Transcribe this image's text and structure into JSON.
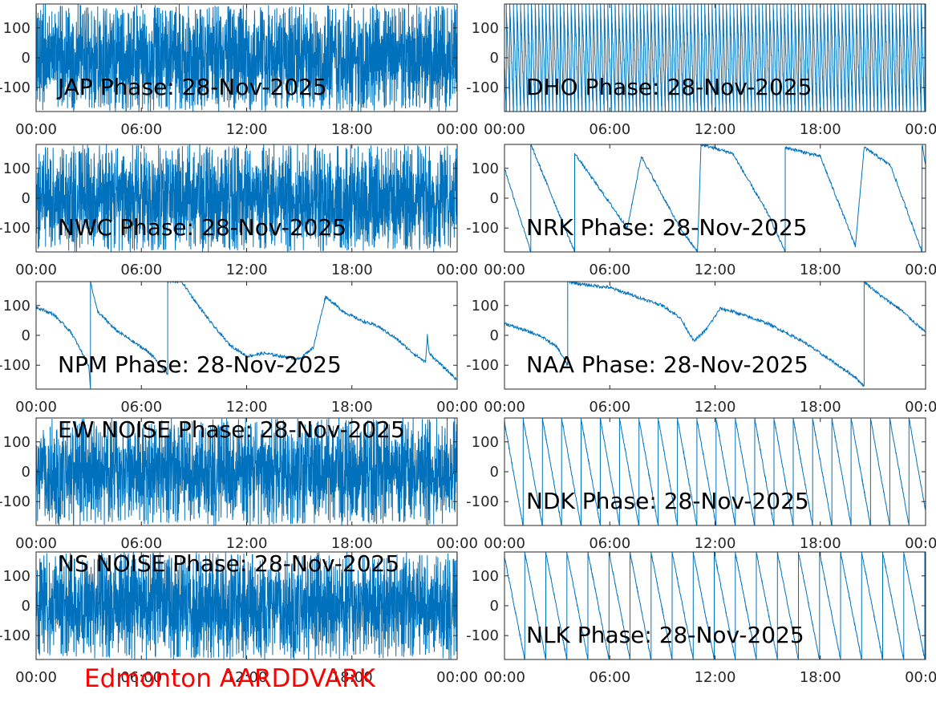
{
  "footer": {
    "label": "Edmonton AARDDVARK",
    "color": "#ff0000"
  },
  "style": {
    "line_color": "#0072bd",
    "axes_color": "#262626"
  },
  "chart_data": [
    {
      "type": "line",
      "title": "JAP Phase: 28-Nov-2025",
      "xlabel": "",
      "ylabel": "",
      "x_ticks": [
        "00:00",
        "06:00",
        "12:00",
        "18:00",
        "00:00"
      ],
      "x_range_hours": [
        0,
        24
      ],
      "yticks": [
        100,
        0,
        -100
      ],
      "ytick_labels": [
        "100",
        "0",
        "-100"
      ],
      "ylim": [
        -180,
        180
      ],
      "grid": false,
      "series": [
        {
          "pattern": "noise",
          "values": []
        }
      ]
    },
    {
      "type": "line",
      "title": "DHO Phase: 28-Nov-2025",
      "xlabel": "",
      "ylabel": "",
      "x_ticks": [
        "00:00",
        "06:00",
        "12:00",
        "18:00",
        "00:00"
      ],
      "x_range_hours": [
        0,
        24
      ],
      "yticks": [
        100,
        0,
        -100
      ],
      "ytick_labels": [
        "100",
        "0",
        "-100"
      ],
      "ylim": [
        -180,
        180
      ],
      "grid": false,
      "series": [
        {
          "pattern": "fast-wrap",
          "values": []
        }
      ]
    },
    {
      "type": "line",
      "title": "NWC Phase: 28-Nov-2025",
      "xlabel": "",
      "ylabel": "",
      "x_ticks": [
        "00:00",
        "06:00",
        "12:00",
        "18:00",
        "00:00"
      ],
      "x_range_hours": [
        0,
        24
      ],
      "yticks": [
        100,
        0,
        -100
      ],
      "ytick_labels": [
        "100",
        "0",
        "-100"
      ],
      "ylim": [
        -180,
        180
      ],
      "grid": false,
      "series": [
        {
          "pattern": "noise",
          "values": []
        }
      ]
    },
    {
      "type": "line",
      "title": "NRK Phase: 28-Nov-2025",
      "xlabel": "",
      "ylabel": "",
      "x_ticks": [
        "00:00",
        "06:00",
        "12:00",
        "18:00",
        "00:00"
      ],
      "x_range_hours": [
        0,
        24
      ],
      "yticks": [
        100,
        0,
        -100
      ],
      "ytick_labels": [
        "100",
        "0",
        "-100"
      ],
      "ylim": [
        -180,
        180
      ],
      "grid": false,
      "series": [
        {
          "pattern": "sawtooth",
          "values": [
            [
              0,
              100
            ],
            [
              1.5,
              -180
            ],
            [
              1.5,
              180
            ],
            [
              4,
              -180
            ],
            [
              4,
              150
            ],
            [
              7,
              -100
            ],
            [
              7.8,
              140
            ],
            [
              10,
              -100
            ],
            [
              11,
              -180
            ],
            [
              11.2,
              180
            ],
            [
              13,
              150
            ],
            [
              15,
              -50
            ],
            [
              16,
              -180
            ],
            [
              16,
              170
            ],
            [
              18,
              140
            ],
            [
              20,
              -160
            ],
            [
              20.5,
              170
            ],
            [
              22,
              110
            ],
            [
              23.8,
              -180
            ],
            [
              23.8,
              180
            ],
            [
              24,
              110
            ]
          ]
        }
      ]
    },
    {
      "type": "line",
      "title": "NPM Phase: 28-Nov-2025",
      "xlabel": "",
      "ylabel": "",
      "x_ticks": [
        "00:00",
        "06:00",
        "12:00",
        "18:00",
        "00:00"
      ],
      "x_range_hours": [
        0,
        24
      ],
      "yticks": [
        100,
        0,
        -100
      ],
      "ytick_labels": [
        "100",
        "0",
        "-100"
      ],
      "ylim": [
        -180,
        180
      ],
      "grid": false,
      "series": [
        {
          "pattern": "piecewise",
          "values": [
            [
              0,
              95
            ],
            [
              1,
              70
            ],
            [
              2,
              10
            ],
            [
              3,
              -100
            ],
            [
              3.1,
              -180
            ],
            [
              3.1,
              180
            ],
            [
              3.5,
              80
            ],
            [
              4.5,
              20
            ],
            [
              5.5,
              -20
            ],
            [
              6.5,
              -60
            ],
            [
              7.5,
              -130
            ],
            [
              7.5,
              180
            ],
            [
              8.3,
              180
            ],
            [
              9,
              120
            ],
            [
              10,
              40
            ],
            [
              11,
              -30
            ],
            [
              12,
              -70
            ],
            [
              13,
              -60
            ],
            [
              14,
              -70
            ],
            [
              15,
              -80
            ],
            [
              15.8,
              -40
            ],
            [
              16.5,
              130
            ],
            [
              17.5,
              80
            ],
            [
              18.5,
              50
            ],
            [
              19.5,
              30
            ],
            [
              20.5,
              -10
            ],
            [
              21.5,
              -60
            ],
            [
              22.2,
              -90
            ],
            [
              22.3,
              0
            ],
            [
              22.4,
              -60
            ],
            [
              24,
              -150
            ]
          ]
        }
      ]
    },
    {
      "type": "line",
      "title": "NAA Phase: 28-Nov-2025",
      "xlabel": "",
      "ylabel": "",
      "x_ticks": [
        "00:00",
        "06:00",
        "12:00",
        "18:00",
        "00:00"
      ],
      "x_range_hours": [
        0,
        24
      ],
      "yticks": [
        100,
        0,
        -100
      ],
      "ytick_labels": [
        "100",
        "0",
        "-100"
      ],
      "ylim": [
        -180,
        180
      ],
      "grid": false,
      "series": [
        {
          "pattern": "piecewise",
          "values": [
            [
              0,
              40
            ],
            [
              1,
              20
            ],
            [
              2,
              0
            ],
            [
              3,
              -40
            ],
            [
              3.6,
              -100
            ],
            [
              3.6,
              180
            ],
            [
              4.5,
              170
            ],
            [
              6,
              160
            ],
            [
              8,
              120
            ],
            [
              9,
              100
            ],
            [
              10,
              60
            ],
            [
              10.8,
              -20
            ],
            [
              11.5,
              20
            ],
            [
              12.3,
              90
            ],
            [
              13,
              80
            ],
            [
              14,
              60
            ],
            [
              15,
              40
            ],
            [
              16,
              10
            ],
            [
              17,
              -20
            ],
            [
              18,
              -60
            ],
            [
              19,
              -100
            ],
            [
              20,
              -140
            ],
            [
              20.5,
              -170
            ],
            [
              20.5,
              180
            ],
            [
              21.5,
              130
            ],
            [
              22.5,
              90
            ],
            [
              24,
              10
            ]
          ]
        }
      ]
    },
    {
      "type": "line",
      "title": "EW NOISE Phase: 28-Nov-2025",
      "xlabel": "",
      "ylabel": "",
      "x_ticks": [
        "00:00",
        "06:00",
        "12:00",
        "18:00",
        "00:00"
      ],
      "x_range_hours": [
        0,
        24
      ],
      "yticks": [
        100,
        0,
        -100
      ],
      "ytick_labels": [
        "100",
        "0",
        "-100"
      ],
      "ylim": [
        -180,
        180
      ],
      "grid": false,
      "series": [
        {
          "pattern": "noise",
          "values": []
        }
      ]
    },
    {
      "type": "line",
      "title": "NDK Phase: 28-Nov-2025",
      "xlabel": "",
      "ylabel": "",
      "x_ticks": [
        "00:00",
        "06:00",
        "12:00",
        "18:00",
        "00:00"
      ],
      "x_range_hours": [
        0,
        24
      ],
      "yticks": [
        100,
        0,
        -100
      ],
      "ytick_labels": [
        "100",
        "0",
        "-100"
      ],
      "ylim": [
        -180,
        180
      ],
      "grid": false,
      "series": [
        {
          "pattern": "sawtooth",
          "values": []
        }
      ]
    },
    {
      "type": "line",
      "title": "NS NOISE Phase: 28-Nov-2025",
      "xlabel": "",
      "ylabel": "",
      "x_ticks": [
        "00:00",
        "06:00",
        "12:00",
        "18:00",
        "00:00"
      ],
      "x_range_hours": [
        0,
        24
      ],
      "yticks": [
        100,
        0,
        -100
      ],
      "ytick_labels": [
        "100",
        "0",
        "-100"
      ],
      "ylim": [
        -180,
        180
      ],
      "grid": false,
      "series": [
        {
          "pattern": "noise",
          "values": []
        }
      ]
    },
    {
      "type": "line",
      "title": "NLK Phase: 28-Nov-2025",
      "xlabel": "",
      "ylabel": "",
      "x_ticks": [
        "00:00",
        "06:00",
        "12:00",
        "18:00",
        "00:00"
      ],
      "x_range_hours": [
        0,
        24
      ],
      "yticks": [
        100,
        0,
        -100
      ],
      "ytick_labels": [
        "100",
        "0",
        "-100"
      ],
      "ylim": [
        -180,
        180
      ],
      "grid": false,
      "series": [
        {
          "pattern": "sawtooth",
          "values": []
        }
      ]
    }
  ]
}
